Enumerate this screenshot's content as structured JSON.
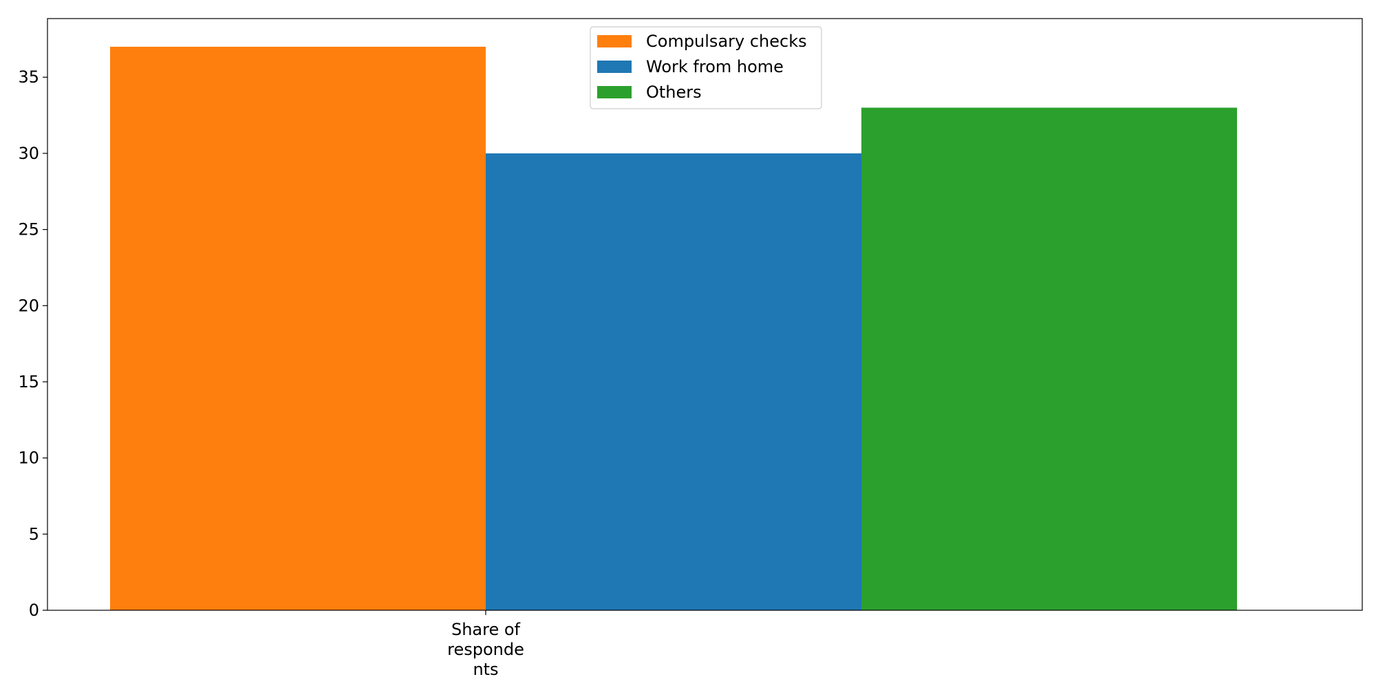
{
  "chart_data": {
    "type": "bar",
    "categories": [
      "Share of\nresponde\nnts"
    ],
    "series": [
      {
        "name": "Compulsary checks",
        "values": [
          37
        ],
        "color": "#ff7f0e"
      },
      {
        "name": "Work from home",
        "values": [
          30
        ],
        "color": "#1f77b4"
      },
      {
        "name": "Others",
        "values": [
          33
        ],
        "color": "#2ca02c"
      }
    ],
    "yticks": [
      0,
      5,
      10,
      15,
      20,
      25,
      30,
      35
    ],
    "ylim": [
      0,
      38.85
    ],
    "title": "",
    "xlabel": "",
    "ylabel": "",
    "grid": false,
    "legend": "upper-center"
  }
}
